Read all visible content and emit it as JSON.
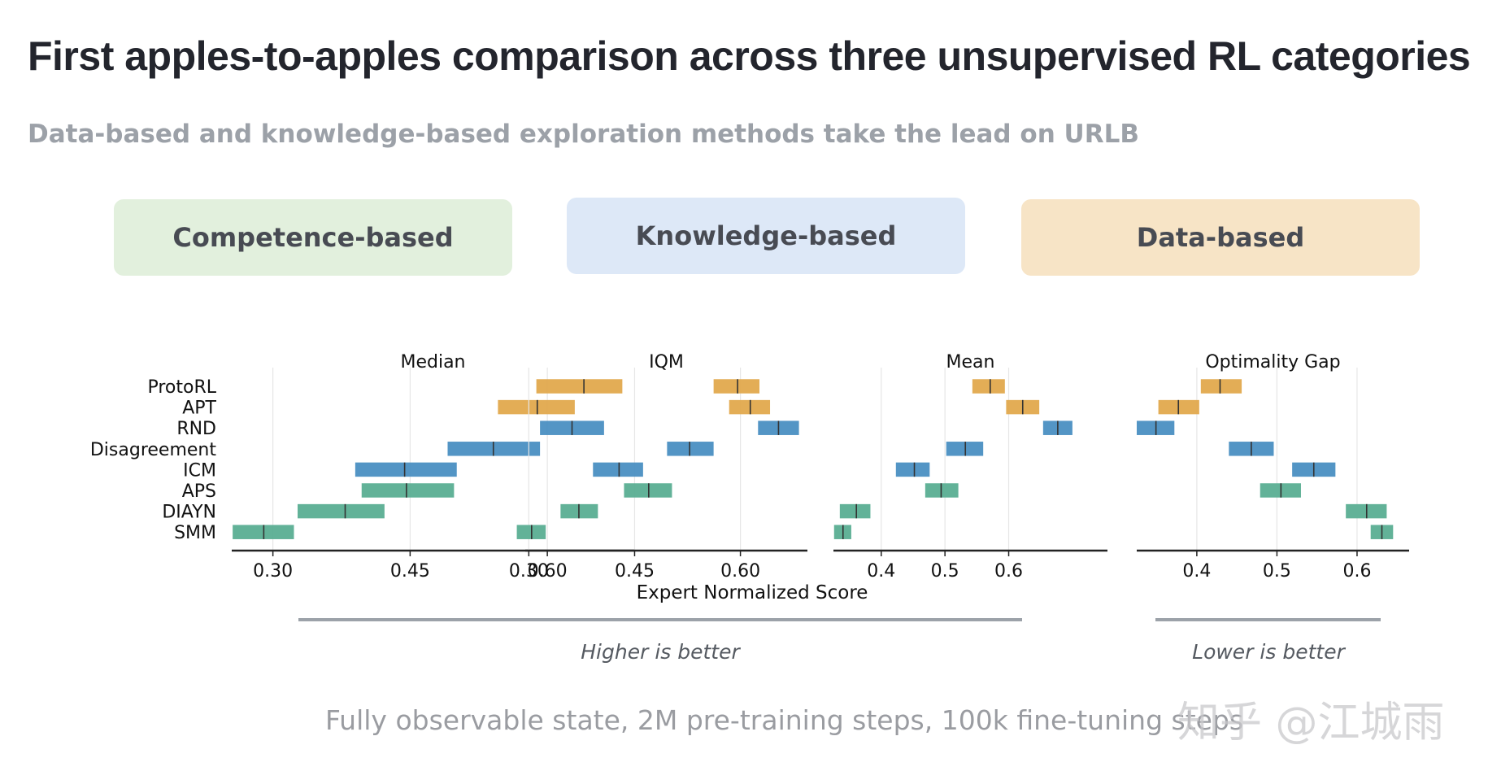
{
  "header": {
    "title": "First apples-to-apples comparison across three unsupervised RL categories",
    "subtitle": "Data-based and knowledge-based exploration methods take the lead on URLB"
  },
  "categories": {
    "competence": "Competence-based",
    "knowledge": "Knowledge-based",
    "data": "Data-based"
  },
  "colors": {
    "competence": "#5aae92",
    "knowledge": "#4a8fc2",
    "data": "#e2a94d",
    "grid": "#e6e6e6",
    "axis": "#222222"
  },
  "footer": {
    "note": "Fully observable state, 2M pre-training steps, 100k fine-tuning steps",
    "watermark": "知乎 @江城雨"
  },
  "annotations": {
    "higher": "Higher is better",
    "lower": "Lower is better"
  },
  "chart_data": {
    "type": "interval",
    "xlabel": "Expert Normalized Score",
    "methods": [
      "ProtoRL",
      "APT",
      "RND",
      "Disagreement",
      "ICM",
      "APS",
      "DIAYN",
      "SMM"
    ],
    "method_category": [
      "data",
      "data",
      "knowledge",
      "knowledge",
      "knowledge",
      "competence",
      "competence",
      "competence"
    ],
    "panels": [
      {
        "title": "Median",
        "xlim": [
          0.255,
          0.695
        ],
        "ticks": [
          0.3,
          0.45,
          0.6
        ],
        "tick_labels": [
          "0.30",
          "0.45",
          "0.60"
        ],
        "intervals": [
          {
            "low": 0.588,
            "high": 0.682,
            "point": 0.64
          },
          {
            "low": 0.546,
            "high": 0.63,
            "point": 0.589
          },
          {
            "low": 0.592,
            "high": 0.662,
            "point": 0.627
          },
          {
            "low": 0.491,
            "high": 0.592,
            "point": 0.541
          },
          {
            "low": 0.39,
            "high": 0.501,
            "point": 0.444
          },
          {
            "low": 0.397,
            "high": 0.498,
            "point": 0.446
          },
          {
            "low": 0.327,
            "high": 0.422,
            "point": 0.379
          },
          {
            "low": 0.256,
            "high": 0.323,
            "point": 0.29
          }
        ]
      },
      {
        "title": "IQM",
        "xlim": [
          0.295,
          0.695
        ],
        "ticks": [
          0.3,
          0.45,
          0.6
        ],
        "tick_labels": [
          "0.30",
          "0.45",
          "0.60"
        ],
        "intervals": [
          {
            "low": 0.562,
            "high": 0.627,
            "point": 0.596
          },
          {
            "low": 0.584,
            "high": 0.642,
            "point": 0.614
          },
          {
            "low": 0.625,
            "high": 0.683,
            "point": 0.654
          },
          {
            "low": 0.496,
            "high": 0.562,
            "point": 0.528
          },
          {
            "low": 0.391,
            "high": 0.462,
            "point": 0.428
          },
          {
            "low": 0.435,
            "high": 0.503,
            "point": 0.47
          },
          {
            "low": 0.345,
            "high": 0.398,
            "point": 0.371
          },
          {
            "low": 0.283,
            "high": 0.324,
            "point": 0.304
          }
        ]
      },
      {
        "title": "Mean",
        "xlim": [
          0.325,
          0.755
        ],
        "ticks": [
          0.4,
          0.5,
          0.6
        ],
        "tick_labels": [
          "0.4",
          "0.5",
          "0.6"
        ],
        "intervals": [
          {
            "low": 0.543,
            "high": 0.594,
            "point": 0.571
          },
          {
            "low": 0.596,
            "high": 0.648,
            "point": 0.622
          },
          {
            "low": 0.654,
            "high": 0.7,
            "point": 0.677
          },
          {
            "low": 0.502,
            "high": 0.56,
            "point": 0.532
          },
          {
            "low": 0.423,
            "high": 0.476,
            "point": 0.452
          },
          {
            "low": 0.469,
            "high": 0.521,
            "point": 0.494
          },
          {
            "low": 0.335,
            "high": 0.383,
            "point": 0.361
          },
          {
            "low": 0.326,
            "high": 0.353,
            "point": 0.34
          }
        ]
      },
      {
        "title": "Optimality Gap",
        "xlim": [
          0.325,
          0.665
        ],
        "ticks": [
          0.4,
          0.5,
          0.6
        ],
        "tick_labels": [
          "0.4",
          "0.5",
          "0.6"
        ],
        "intervals": [
          {
            "low": 0.405,
            "high": 0.456,
            "point": 0.429
          },
          {
            "low": 0.352,
            "high": 0.403,
            "point": 0.377
          },
          {
            "low": 0.325,
            "high": 0.372,
            "point": 0.349
          },
          {
            "low": 0.44,
            "high": 0.496,
            "point": 0.468
          },
          {
            "low": 0.519,
            "high": 0.573,
            "point": 0.546
          },
          {
            "low": 0.479,
            "high": 0.53,
            "point": 0.505
          },
          {
            "low": 0.586,
            "high": 0.637,
            "point": 0.612
          },
          {
            "low": 0.617,
            "high": 0.645,
            "point": 0.631
          }
        ]
      }
    ]
  }
}
